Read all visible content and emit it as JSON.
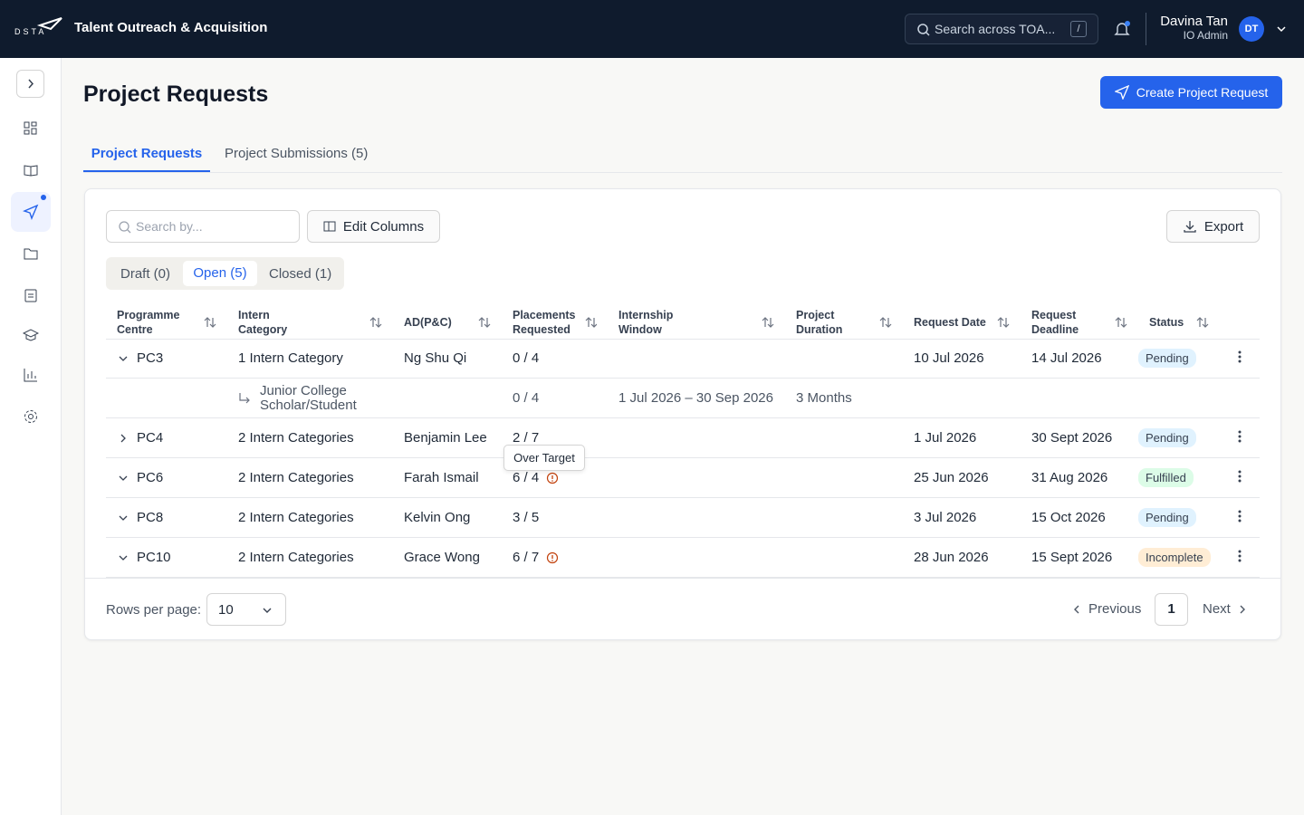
{
  "header": {
    "logo": "DSTA",
    "app_title": "Talent Outreach & Acquisition",
    "search_placeholder": "Search across TOA...",
    "search_shortcut": "/",
    "user_name": "Davina Tan",
    "user_role": "IO Admin",
    "user_initials": "DT"
  },
  "page": {
    "title": "Project Requests",
    "create_button": "Create Project Request"
  },
  "tabs": [
    "Project Requests",
    "Project Submissions (5)"
  ],
  "toolbar": {
    "search_placeholder": "Search by...",
    "edit_columns": "Edit Columns",
    "export": "Export"
  },
  "filters": [
    "Draft (0)",
    "Open (5)",
    "Closed (1)"
  ],
  "table": {
    "columns": [
      "Programme Centre",
      "Intern Category",
      "AD(P&C)",
      "Placements Requested",
      "Internship Window",
      "Project Duration",
      "Request Date",
      "Request Deadline",
      "Status"
    ],
    "rows": [
      {
        "centre": "PC3",
        "category": "1 Intern Category",
        "ad": "Ng Shu Qi",
        "placements": "0 / 4",
        "request_date": "10 Jul 2026",
        "deadline": "14 Jul 2026",
        "status": "Pending",
        "status_color": "#e0f2fe",
        "expanded": true,
        "warning": false,
        "sub_rows": [
          {
            "category": "Junior College Scholar/Student",
            "placements": "0 / 4",
            "window": "1 Jul 2026 – 30 Sep 2026",
            "duration": "3 Months"
          }
        ]
      },
      {
        "centre": "PC4",
        "category": "2 Intern Categories",
        "ad": "Benjamin Lee",
        "placements": "2 / 7",
        "request_date": "1 Jul 2026",
        "deadline": "30 Sept 2026",
        "status": "Pending",
        "status_color": "#e0f2fe",
        "expanded": false,
        "warning": false
      },
      {
        "centre": "PC6",
        "category": "2 Intern Categories",
        "ad": "Farah Ismail",
        "placements": "6 / 4",
        "request_date": "25 Jun 2026",
        "deadline": "31 Aug 2026",
        "status": "Fulfilled",
        "status_color": "#dcfce7",
        "expanded": true,
        "warning": true
      },
      {
        "centre": "PC8",
        "category": "2 Intern Categories",
        "ad": "Kelvin Ong",
        "placements": "3 / 5",
        "request_date": "3 Jul 2026",
        "deadline": "15 Oct 2026",
        "status": "Pending",
        "status_color": "#e0f2fe",
        "expanded": true,
        "warning": false
      },
      {
        "centre": "PC10",
        "category": "2 Intern Categories",
        "ad": "Grace Wong",
        "placements": "6 / 7",
        "request_date": "28 Jun 2026",
        "deadline": "15 Sept 2026",
        "status": "Incomplete",
        "status_color": "#ffedd5",
        "expanded": true,
        "warning": true
      }
    ]
  },
  "tooltip": "Over Target",
  "pagination": {
    "rows_per_page_label": "Rows per page:",
    "rows_per_page": 10,
    "previous": "Previous",
    "page": 1,
    "next": "Next"
  }
}
